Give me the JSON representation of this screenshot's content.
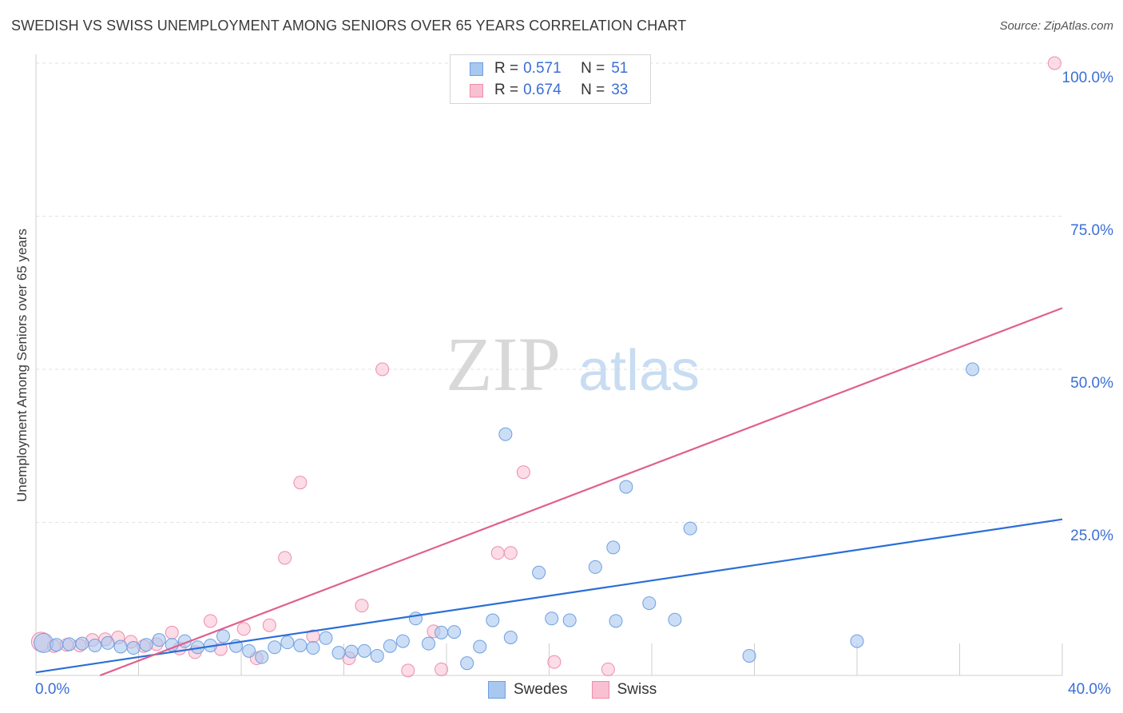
{
  "title": "SWEDISH VS SWISS UNEMPLOYMENT AMONG SENIORS OVER 65 YEARS CORRELATION CHART",
  "source": "Source: ZipAtlas.com",
  "watermark": {
    "zip": "ZIP",
    "atlas": "atlas"
  },
  "legend": {
    "rows": [
      {
        "r_label": "R =",
        "r_value": "0.571",
        "n_label": "N =",
        "n_value": "51",
        "color": "#a8c8f0",
        "border": "#6f9fe0"
      },
      {
        "r_label": "R =",
        "r_value": "0.674",
        "n_label": "N =",
        "n_value": "33",
        "color": "#f9c0d2",
        "border": "#ec8eab"
      }
    ]
  },
  "bottom_legend": [
    "Swedes",
    "Swiss"
  ],
  "x_tick_labels": {
    "min": "0.0%",
    "max": "40.0%"
  },
  "y_tick_labels": [
    "100.0%",
    "75.0%",
    "50.0%",
    "25.0%"
  ],
  "colors": {
    "swedes_fill": "#a8c8f0",
    "swedes_stroke": "#6f9fe0",
    "swedes_line": "#2a6fd6",
    "swiss_fill": "#f9c0d2",
    "swiss_stroke": "#ec8eab",
    "swiss_line": "#e0608e",
    "tick_text": "#3b6fd4"
  },
  "chart_data": {
    "type": "scatter",
    "title": "SWEDISH VS SWISS UNEMPLOYMENT AMONG SENIORS OVER 65 YEARS CORRELATION CHART",
    "xlabel": "",
    "ylabel": "Unemployment Among Seniors over 65 years",
    "xlim": [
      0,
      40
    ],
    "ylim": [
      0,
      100
    ],
    "x_unit": "%",
    "y_unit": "%",
    "grid": true,
    "legend_position": "top-center",
    "series": [
      {
        "name": "Swedes",
        "r": 0.571,
        "n": 51,
        "trendline": {
          "x": [
            0,
            40
          ],
          "y": [
            0.5,
            25.5
          ]
        },
        "points": [
          [
            0.3,
            5.3
          ],
          [
            0.8,
            5.0
          ],
          [
            1.3,
            5.1
          ],
          [
            1.8,
            5.2
          ],
          [
            2.3,
            4.9
          ],
          [
            2.8,
            5.3
          ],
          [
            3.3,
            4.7
          ],
          [
            3.8,
            4.5
          ],
          [
            4.3,
            5.0
          ],
          [
            4.8,
            5.8
          ],
          [
            5.3,
            5.0
          ],
          [
            5.8,
            5.6
          ],
          [
            6.3,
            4.6
          ],
          [
            6.8,
            4.9
          ],
          [
            7.3,
            6.4
          ],
          [
            7.8,
            4.8
          ],
          [
            8.3,
            4.0
          ],
          [
            8.8,
            3.0
          ],
          [
            9.3,
            4.6
          ],
          [
            9.8,
            5.4
          ],
          [
            10.3,
            4.9
          ],
          [
            10.8,
            4.5
          ],
          [
            11.3,
            6.1
          ],
          [
            11.8,
            3.7
          ],
          [
            12.3,
            3.9
          ],
          [
            12.8,
            4.0
          ],
          [
            13.3,
            3.2
          ],
          [
            13.8,
            4.8
          ],
          [
            14.3,
            5.6
          ],
          [
            14.8,
            9.3
          ],
          [
            15.3,
            5.2
          ],
          [
            15.8,
            7.0
          ],
          [
            16.3,
            7.1
          ],
          [
            16.8,
            2.0
          ],
          [
            17.3,
            4.7
          ],
          [
            17.8,
            9.0
          ],
          [
            18.3,
            39.4
          ],
          [
            18.5,
            6.2
          ],
          [
            19.6,
            16.8
          ],
          [
            20.1,
            9.3
          ],
          [
            20.8,
            9.0
          ],
          [
            21.8,
            17.7
          ],
          [
            22.5,
            20.9
          ],
          [
            22.6,
            8.9
          ],
          [
            23.0,
            30.8
          ],
          [
            23.9,
            11.8
          ],
          [
            24.9,
            9.1
          ],
          [
            25.5,
            24.0
          ],
          [
            27.8,
            3.2
          ],
          [
            32.0,
            5.6
          ],
          [
            36.5,
            50.0
          ]
        ]
      },
      {
        "name": "Swiss",
        "r": 0.674,
        "n": 33,
        "trendline": {
          "x": [
            2.5,
            40
          ],
          "y": [
            0.0,
            60.0
          ]
        },
        "points": [
          [
            0.2,
            5.5
          ],
          [
            0.7,
            4.8
          ],
          [
            1.2,
            5.0
          ],
          [
            1.7,
            4.9
          ],
          [
            2.2,
            5.8
          ],
          [
            2.7,
            5.9
          ],
          [
            3.2,
            6.2
          ],
          [
            3.7,
            5.5
          ],
          [
            4.2,
            4.8
          ],
          [
            4.7,
            5.1
          ],
          [
            5.3,
            7.0
          ],
          [
            5.6,
            4.4
          ],
          [
            6.2,
            3.8
          ],
          [
            6.8,
            8.9
          ],
          [
            7.2,
            4.3
          ],
          [
            8.1,
            7.6
          ],
          [
            8.6,
            2.8
          ],
          [
            9.1,
            8.2
          ],
          [
            9.7,
            19.2
          ],
          [
            10.3,
            31.5
          ],
          [
            10.8,
            6.4
          ],
          [
            12.2,
            2.8
          ],
          [
            12.7,
            11.4
          ],
          [
            13.5,
            50.0
          ],
          [
            14.5,
            0.8
          ],
          [
            15.5,
            7.2
          ],
          [
            15.8,
            1.0
          ],
          [
            18.0,
            20.0
          ],
          [
            18.5,
            20.0
          ],
          [
            19.0,
            33.2
          ],
          [
            20.2,
            2.2
          ],
          [
            22.3,
            1.0
          ],
          [
            39.7,
            100.0
          ]
        ]
      }
    ]
  }
}
